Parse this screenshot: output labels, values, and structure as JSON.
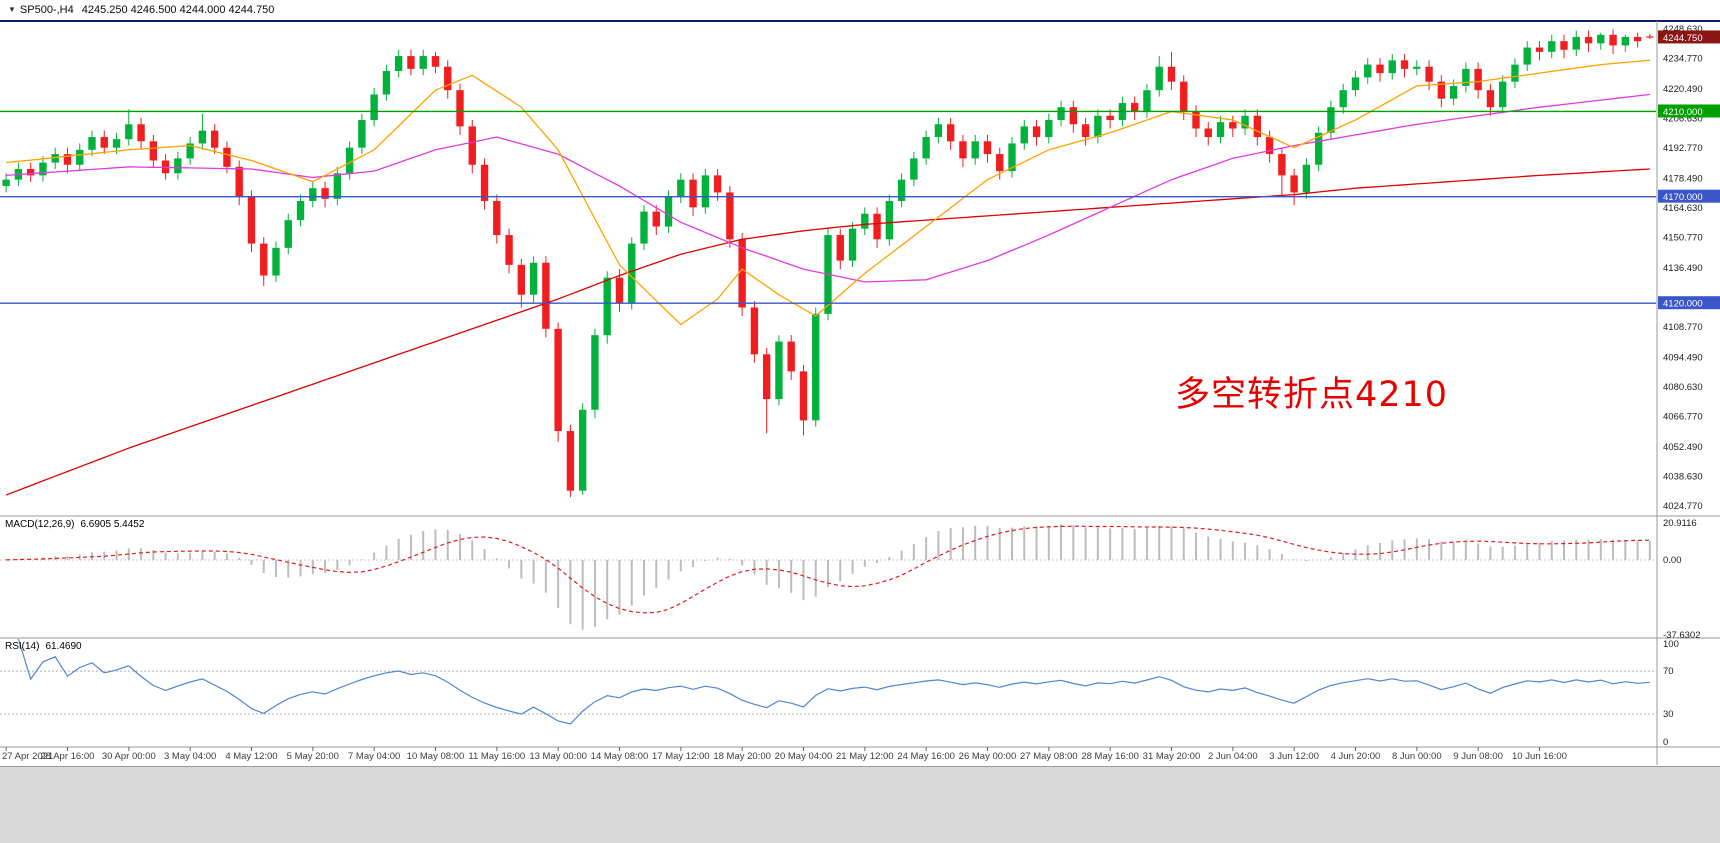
{
  "header": {
    "arrow": "▼",
    "symbol": "SP500-,H4",
    "ohlc_text": "4245.250 4246.500 4244.000 4244.750"
  },
  "annotation": {
    "text": "多空转折点4210",
    "color": "#e60000"
  },
  "colors": {
    "bull": "#00b23c",
    "bear": "#f01e1e",
    "frame": "#0d1f63",
    "separator": "#999999",
    "axis_text": "#3d3d3d",
    "tick_text": "#1c1c1c",
    "background": "#ffffff",
    "bottom_strip": "#d9d9d9"
  },
  "price_scale": {
    "ticks": [
      "4248.630",
      "4234.770",
      "4220.490",
      "4206.630",
      "4192.770",
      "4178.490",
      "4164.630",
      "4150.770",
      "4136.490",
      "4108.770",
      "4094.490",
      "4080.630",
      "4066.770",
      "4052.490",
      "4038.630",
      "4024.770"
    ],
    "boxes": [
      {
        "label": "4244.750",
        "price": 4244.75,
        "bg": "#8b1515"
      },
      {
        "label": "4210.000",
        "price": 4210.0,
        "bg": "#00a000"
      },
      {
        "label": "4170.000",
        "price": 4170.0,
        "bg": "#3a56c8"
      },
      {
        "label": "4120.000",
        "price": 4120.0,
        "bg": "#3a56c8"
      }
    ]
  },
  "hlines": [
    {
      "price": 4210.0,
      "color": "#00a000"
    },
    {
      "price": 4170.0,
      "color": "#3a56c8"
    },
    {
      "price": 4120.0,
      "color": "#3a56c8"
    }
  ],
  "chart_data": {
    "type": "candlestick",
    "symbol": "SP500-",
    "timeframe": "H4",
    "y_range": [
      4022,
      4252
    ],
    "x_axis": {
      "label_every": 5,
      "labels": [
        "27 Apr 2021",
        "28 Apr 16:00",
        "30 Apr 00:00",
        "3 May 04:00",
        "4 May 12:00",
        "5 May 20:00",
        "7 May 04:00",
        "10 May 08:00",
        "11 May 16:00",
        "13 May 00:00",
        "14 May 08:00",
        "17 May 12:00",
        "18 May 20:00",
        "20 May 04:00",
        "21 May 12:00",
        "24 May 16:00",
        "26 May 00:00",
        "27 May 08:00",
        "28 May 16:00",
        "31 May 20:00",
        "2 Jun 04:00",
        "3 Jun 12:00",
        "4 Jun 20:00",
        "8 Jun 00:00",
        "9 Jun 08:00",
        "10 Jun 16:00"
      ]
    },
    "candles": [
      [
        4175,
        4181,
        4172,
        4178
      ],
      [
        4178,
        4186,
        4175,
        4183
      ],
      [
        4183,
        4186,
        4177,
        4180
      ],
      [
        4180,
        4189,
        4177,
        4186
      ],
      [
        4186,
        4193,
        4183,
        4190
      ],
      [
        4190,
        4193,
        4181,
        4185
      ],
      [
        4185,
        4195,
        4182,
        4192
      ],
      [
        4192,
        4201,
        4189,
        4198
      ],
      [
        4198,
        4201,
        4190,
        4193
      ],
      [
        4193,
        4200,
        4190,
        4197
      ],
      [
        4197,
        4211,
        4194,
        4204
      ],
      [
        4204,
        4207,
        4192,
        4196
      ],
      [
        4196,
        4199,
        4184,
        4187
      ],
      [
        4187,
        4190,
        4178,
        4181
      ],
      [
        4181,
        4191,
        4178,
        4188
      ],
      [
        4188,
        4198,
        4185,
        4195
      ],
      [
        4195,
        4209,
        4192,
        4201
      ],
      [
        4201,
        4204,
        4190,
        4193
      ],
      [
        4193,
        4196,
        4181,
        4184
      ],
      [
        4184,
        4187,
        4166,
        4170
      ],
      [
        4170,
        4173,
        4144,
        4148
      ],
      [
        4148,
        4151,
        4128,
        4133
      ],
      [
        4133,
        4149,
        4130,
        4146
      ],
      [
        4146,
        4162,
        4143,
        4159
      ],
      [
        4159,
        4171,
        4156,
        4168
      ],
      [
        4168,
        4177,
        4165,
        4174
      ],
      [
        4174,
        4177,
        4165,
        4169
      ],
      [
        4169,
        4184,
        4166,
        4181
      ],
      [
        4181,
        4196,
        4178,
        4193
      ],
      [
        4193,
        4209,
        4190,
        4206
      ],
      [
        4206,
        4221,
        4203,
        4218
      ],
      [
        4218,
        4232,
        4215,
        4229
      ],
      [
        4229,
        4239,
        4226,
        4236
      ],
      [
        4236,
        4239,
        4227,
        4230
      ],
      [
        4230,
        4239,
        4227,
        4236
      ],
      [
        4236,
        4238,
        4228,
        4231
      ],
      [
        4231,
        4234,
        4216,
        4220
      ],
      [
        4220,
        4223,
        4199,
        4203
      ],
      [
        4203,
        4206,
        4181,
        4185
      ],
      [
        4185,
        4188,
        4164,
        4168
      ],
      [
        4168,
        4171,
        4148,
        4152
      ],
      [
        4152,
        4155,
        4134,
        4138
      ],
      [
        4138,
        4141,
        4118,
        4124
      ],
      [
        4124,
        4142,
        4120,
        4139
      ],
      [
        4139,
        4142,
        4104,
        4108
      ],
      [
        4108,
        4111,
        4055,
        4060
      ],
      [
        4060,
        4063,
        4029,
        4032
      ],
      [
        4032,
        4073,
        4030,
        4070
      ],
      [
        4070,
        4108,
        4066,
        4105
      ],
      [
        4105,
        4135,
        4101,
        4132
      ],
      [
        4132,
        4136,
        4116,
        4120
      ],
      [
        4120,
        4151,
        4117,
        4148
      ],
      [
        4148,
        4166,
        4145,
        4163
      ],
      [
        4163,
        4166,
        4152,
        4156
      ],
      [
        4156,
        4173,
        4153,
        4170
      ],
      [
        4170,
        4181,
        4167,
        4178
      ],
      [
        4178,
        4181,
        4161,
        4165
      ],
      [
        4165,
        4183,
        4162,
        4180
      ],
      [
        4180,
        4183,
        4168,
        4172
      ],
      [
        4172,
        4175,
        4146,
        4150
      ],
      [
        4150,
        4153,
        4114,
        4118
      ],
      [
        4118,
        4121,
        4092,
        4096
      ],
      [
        4096,
        4099,
        4059,
        4075
      ],
      [
        4075,
        4105,
        4072,
        4102
      ],
      [
        4102,
        4105,
        4084,
        4088
      ],
      [
        4088,
        4091,
        4058,
        4065
      ],
      [
        4065,
        4118,
        4062,
        4115
      ],
      [
        4115,
        4155,
        4112,
        4152
      ],
      [
        4152,
        4155,
        4136,
        4140
      ],
      [
        4140,
        4158,
        4137,
        4155
      ],
      [
        4155,
        4165,
        4152,
        4162
      ],
      [
        4162,
        4165,
        4146,
        4150
      ],
      [
        4150,
        4171,
        4147,
        4168
      ],
      [
        4168,
        4181,
        4165,
        4178
      ],
      [
        4178,
        4191,
        4175,
        4188
      ],
      [
        4188,
        4201,
        4185,
        4198
      ],
      [
        4198,
        4207,
        4195,
        4204
      ],
      [
        4204,
        4207,
        4192,
        4196
      ],
      [
        4196,
        4199,
        4184,
        4188
      ],
      [
        4188,
        4199,
        4185,
        4196
      ],
      [
        4196,
        4199,
        4186,
        4190
      ],
      [
        4190,
        4193,
        4178,
        4182
      ],
      [
        4182,
        4198,
        4179,
        4195
      ],
      [
        4195,
        4206,
        4192,
        4203
      ],
      [
        4203,
        4206,
        4194,
        4198
      ],
      [
        4198,
        4209,
        4195,
        4206
      ],
      [
        4206,
        4215,
        4203,
        4212
      ],
      [
        4212,
        4215,
        4200,
        4204
      ],
      [
        4204,
        4207,
        4194,
        4198
      ],
      [
        4198,
        4211,
        4195,
        4208
      ],
      [
        4208,
        4211,
        4202,
        4206
      ],
      [
        4206,
        4217,
        4203,
        4214
      ],
      [
        4214,
        4217,
        4206,
        4210
      ],
      [
        4210,
        4223,
        4207,
        4220
      ],
      [
        4220,
        4236,
        4217,
        4231
      ],
      [
        4231,
        4238,
        4220,
        4224
      ],
      [
        4224,
        4227,
        4206,
        4210
      ],
      [
        4210,
        4213,
        4198,
        4202
      ],
      [
        4202,
        4205,
        4194,
        4198
      ],
      [
        4198,
        4208,
        4195,
        4205
      ],
      [
        4205,
        4208,
        4198,
        4202
      ],
      [
        4202,
        4211,
        4199,
        4208
      ],
      [
        4208,
        4211,
        4194,
        4198
      ],
      [
        4198,
        4201,
        4186,
        4190
      ],
      [
        4190,
        4193,
        4170,
        4180
      ],
      [
        4180,
        4183,
        4166,
        4172
      ],
      [
        4172,
        4188,
        4169,
        4185
      ],
      [
        4185,
        4203,
        4182,
        4200
      ],
      [
        4200,
        4215,
        4197,
        4212
      ],
      [
        4212,
        4223,
        4209,
        4220
      ],
      [
        4220,
        4229,
        4217,
        4226
      ],
      [
        4226,
        4235,
        4223,
        4232
      ],
      [
        4232,
        4235,
        4224,
        4228
      ],
      [
        4228,
        4237,
        4225,
        4234
      ],
      [
        4234,
        4237,
        4226,
        4230
      ],
      [
        4230,
        4234,
        4227,
        4231
      ],
      [
        4231,
        4234,
        4220,
        4224
      ],
      [
        4224,
        4227,
        4212,
        4216
      ],
      [
        4216,
        4225,
        4213,
        4222
      ],
      [
        4222,
        4233,
        4219,
        4230
      ],
      [
        4230,
        4233,
        4216,
        4220
      ],
      [
        4220,
        4223,
        4208,
        4212
      ],
      [
        4212,
        4227,
        4209,
        4224
      ],
      [
        4224,
        4235,
        4221,
        4232
      ],
      [
        4232,
        4243,
        4229,
        4240
      ],
      [
        4240,
        4243,
        4234,
        4238
      ],
      [
        4238,
        4246,
        4235,
        4243
      ],
      [
        4243,
        4246,
        4235,
        4239
      ],
      [
        4239,
        4248,
        4236,
        4245
      ],
      [
        4245,
        4248,
        4238,
        4242
      ],
      [
        4242,
        4247,
        4239,
        4246
      ],
      [
        4246,
        4248.6,
        4237,
        4241
      ],
      [
        4241,
        4246,
        4238,
        4245
      ],
      [
        4245,
        4247,
        4240,
        4243
      ],
      [
        4245.25,
        4246.5,
        4244,
        4244.75
      ]
    ],
    "overlays": {
      "ma_red": {
        "color": "#dd0000",
        "anchors": [
          [
            0,
            4030
          ],
          [
            10,
            4052
          ],
          [
            20,
            4072
          ],
          [
            30,
            4092
          ],
          [
            40,
            4112
          ],
          [
            45,
            4122
          ],
          [
            50,
            4133
          ],
          [
            55,
            4143
          ],
          [
            60,
            4150
          ],
          [
            65,
            4154
          ],
          [
            70,
            4157
          ],
          [
            75,
            4159
          ],
          [
            80,
            4161
          ],
          [
            85,
            4163
          ],
          [
            90,
            4165
          ],
          [
            95,
            4167
          ],
          [
            100,
            4169
          ],
          [
            105,
            4171
          ],
          [
            110,
            4174
          ],
          [
            115,
            4176
          ],
          [
            120,
            4178
          ],
          [
            125,
            4180
          ],
          [
            134,
            4183
          ]
        ]
      },
      "ma_magenta": {
        "color": "#e03ae0",
        "anchors": [
          [
            0,
            4180
          ],
          [
            10,
            4184
          ],
          [
            20,
            4183
          ],
          [
            25,
            4179
          ],
          [
            30,
            4182
          ],
          [
            35,
            4192
          ],
          [
            40,
            4198
          ],
          [
            45,
            4190
          ],
          [
            50,
            4175
          ],
          [
            55,
            4158
          ],
          [
            60,
            4146
          ],
          [
            65,
            4136
          ],
          [
            70,
            4130
          ],
          [
            75,
            4131
          ],
          [
            80,
            4140
          ],
          [
            85,
            4152
          ],
          [
            90,
            4165
          ],
          [
            95,
            4178
          ],
          [
            100,
            4188
          ],
          [
            105,
            4194
          ],
          [
            110,
            4199
          ],
          [
            115,
            4204
          ],
          [
            120,
            4208
          ],
          [
            125,
            4212
          ],
          [
            134,
            4218
          ]
        ]
      },
      "ma_orange": {
        "color": "#ffa200",
        "anchors": [
          [
            0,
            4186
          ],
          [
            10,
            4192
          ],
          [
            15,
            4194
          ],
          [
            20,
            4187
          ],
          [
            25,
            4177
          ],
          [
            30,
            4192
          ],
          [
            35,
            4220
          ],
          [
            38,
            4227
          ],
          [
            42,
            4212
          ],
          [
            45,
            4192
          ],
          [
            50,
            4138
          ],
          [
            55,
            4110
          ],
          [
            58,
            4122
          ],
          [
            60,
            4136
          ],
          [
            63,
            4124
          ],
          [
            66,
            4114
          ],
          [
            70,
            4134
          ],
          [
            75,
            4156
          ],
          [
            80,
            4178
          ],
          [
            85,
            4192
          ],
          [
            90,
            4200
          ],
          [
            95,
            4210
          ],
          [
            100,
            4206
          ],
          [
            105,
            4193
          ],
          [
            110,
            4206
          ],
          [
            115,
            4222
          ],
          [
            120,
            4224
          ],
          [
            125,
            4228
          ],
          [
            130,
            4232
          ],
          [
            134,
            4234
          ]
        ]
      }
    },
    "indicators": [
      {
        "id": "macd",
        "label": "MACD(12,26,9)",
        "values_text": "6.6905 5.4452",
        "fast": 12,
        "slow": 26,
        "signal": 9,
        "scale_labels": [
          "20.9116",
          "0.00",
          "-37.6302"
        ],
        "hist_color": "#bcbcbc",
        "signal_color": "#e31b1b"
      },
      {
        "id": "rsi",
        "label": "RSI(14)",
        "value_text": "61.4690",
        "period": 14,
        "levels": [
          70,
          30
        ],
        "scale_labels": [
          "100",
          "70",
          "30",
          "0"
        ],
        "line_color": "#4f86d0"
      }
    ]
  }
}
